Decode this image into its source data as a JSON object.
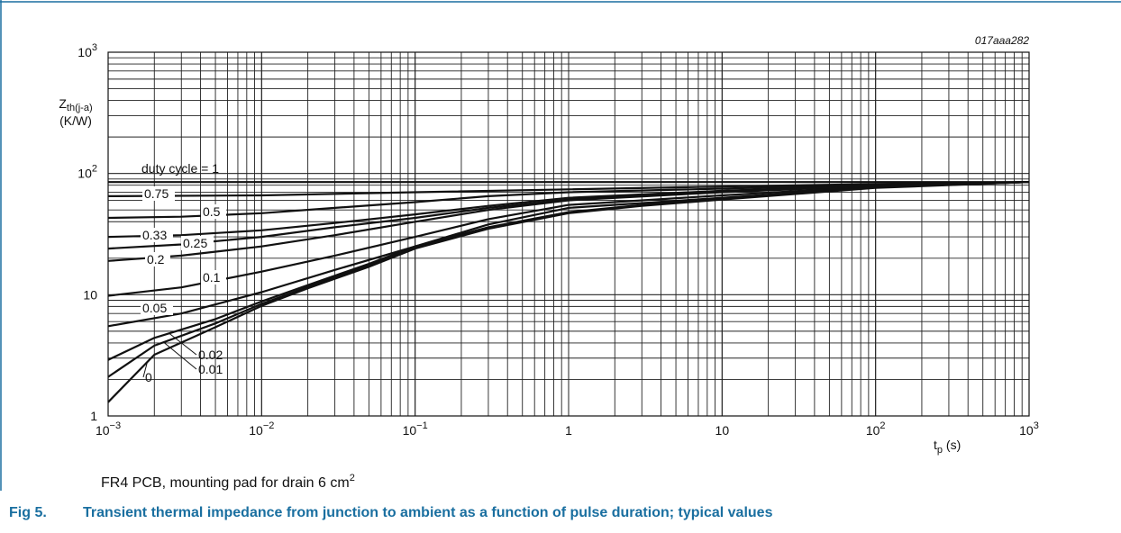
{
  "frame_color": "#1a6fa0",
  "caption_color": "#1a6fa0",
  "chart_data": {
    "type": "line",
    "code": "017aaa282",
    "x_scale": "log",
    "y_scale": "log",
    "xlim": [
      0.001,
      1000
    ],
    "ylim": [
      1,
      1000
    ],
    "grid": true,
    "ylabel": {
      "main": "Z",
      "sub": "th(j-a)",
      "unit": "(K/W)"
    },
    "xlabel": {
      "main": "t",
      "sub": "p",
      "unit": " (s)"
    },
    "x_ticks": [
      {
        "base": "10",
        "exp": "−3",
        "value": 0.001
      },
      {
        "base": "10",
        "exp": "−2",
        "value": 0.01
      },
      {
        "base": "10",
        "exp": "−1",
        "value": 0.1
      },
      {
        "base": "1",
        "exp": "",
        "value": 1
      },
      {
        "base": "10",
        "exp": "",
        "value": 10
      },
      {
        "base": "10",
        "exp": "2",
        "value": 100
      },
      {
        "base": "10",
        "exp": "3",
        "value": 1000
      }
    ],
    "y_ticks": [
      {
        "base": "1",
        "exp": "",
        "value": 1
      },
      {
        "base": "10",
        "exp": "",
        "value": 10
      },
      {
        "base": "10",
        "exp": "2",
        "value": 100
      },
      {
        "base": "10",
        "exp": "3",
        "value": 1000
      }
    ],
    "series": [
      {
        "name": "duty cycle = 1",
        "x": [
          0.001,
          1000
        ],
        "y": [
          85,
          85
        ]
      },
      {
        "name": "0.75",
        "x": [
          0.001,
          0.01,
          0.1,
          1,
          10,
          100,
          1000
        ],
        "y": [
          65,
          66,
          70,
          74,
          78,
          82,
          85
        ]
      },
      {
        "name": "0.5",
        "x": [
          0.001,
          0.003,
          0.01,
          0.03,
          0.1,
          0.3,
          1,
          10,
          100,
          1000
        ],
        "y": [
          43,
          44,
          47,
          52,
          58,
          65,
          70,
          75,
          81,
          85
        ]
      },
      {
        "name": "0.33",
        "x": [
          0.001,
          0.003,
          0.01,
          0.03,
          0.1,
          0.3,
          1,
          10,
          100,
          1000
        ],
        "y": [
          30,
          31,
          34,
          39,
          46,
          54,
          63,
          72,
          80,
          85
        ]
      },
      {
        "name": "0.25",
        "x": [
          0.001,
          0.003,
          0.01,
          0.03,
          0.1,
          0.3,
          1,
          10,
          100,
          1000
        ],
        "y": [
          24,
          26,
          30,
          36,
          43,
          52,
          61,
          71,
          80,
          85
        ]
      },
      {
        "name": "0.2",
        "x": [
          0.001,
          0.003,
          0.01,
          0.03,
          0.1,
          0.3,
          1,
          10,
          100,
          1000
        ],
        "y": [
          19,
          21,
          25,
          31,
          40,
          50,
          60,
          70,
          79,
          85
        ]
      },
      {
        "name": "0.1",
        "x": [
          0.001,
          0.003,
          0.01,
          0.03,
          0.1,
          0.3,
          1,
          10,
          100,
          1000
        ],
        "y": [
          9.8,
          11.5,
          15.5,
          21,
          30,
          42,
          55,
          66,
          78,
          85
        ]
      },
      {
        "name": "0.05",
        "x": [
          0.001,
          0.003,
          0.01,
          0.03,
          0.1,
          0.3,
          1,
          10,
          100,
          1000
        ],
        "y": [
          5.5,
          7,
          10.5,
          16,
          25,
          38,
          52,
          63,
          77,
          85
        ]
      },
      {
        "name": "0.02",
        "x": [
          0.001,
          0.002,
          0.005,
          0.01,
          0.02,
          0.05,
          0.1,
          0.3,
          1,
          3,
          10,
          100,
          1000
        ],
        "y": [
          2.9,
          4.4,
          6.3,
          8.8,
          12,
          18,
          25,
          36,
          48,
          55,
          62,
          77,
          85
        ]
      },
      {
        "name": "0.01",
        "x": [
          0.001,
          0.002,
          0.005,
          0.01,
          0.02,
          0.05,
          0.1,
          0.3,
          1,
          3,
          10,
          100,
          1000
        ],
        "y": [
          2.1,
          3.8,
          5.8,
          8.4,
          11.6,
          17.5,
          24.5,
          35.5,
          47.5,
          54.5,
          61.5,
          77,
          85
        ]
      },
      {
        "name": "0",
        "x": [
          0.001,
          0.002,
          0.005,
          0.01,
          0.02,
          0.05,
          0.1,
          0.3,
          1,
          3,
          10,
          100,
          1000
        ],
        "y": [
          1.3,
          3.2,
          5.4,
          8.1,
          11.3,
          17,
          24,
          35,
          47,
          54,
          61,
          76,
          85
        ]
      }
    ]
  },
  "footnote": {
    "text": "FR4 PCB, mounting pad for drain 6 cm",
    "sup": "2"
  },
  "caption": {
    "number": "Fig 5.",
    "text": "Transient thermal impedance from junction to ambient as a function of pulse duration; typical values"
  }
}
